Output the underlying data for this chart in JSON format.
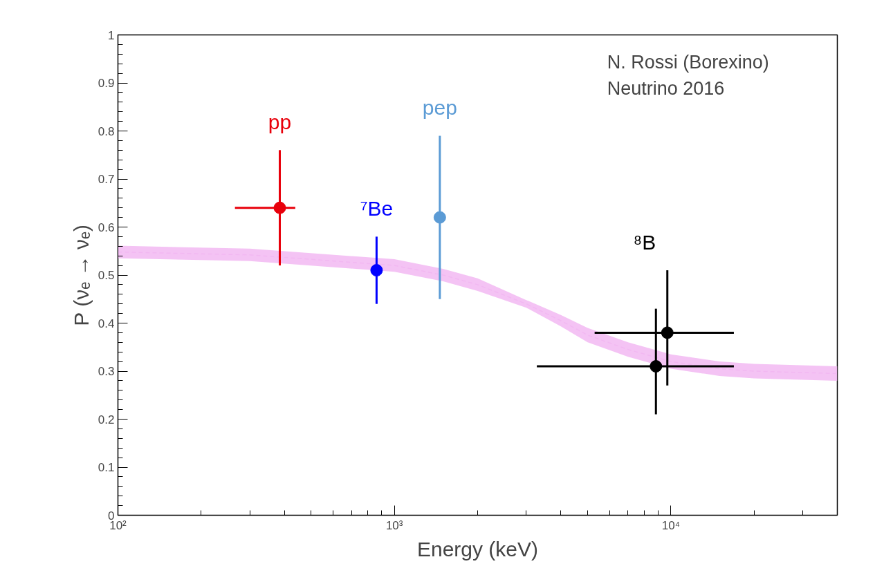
{
  "chart_data": {
    "type": "scatter",
    "xlabel": "Energy (keV)",
    "ylabel": "P (νₑ → νₑ)",
    "log": "x",
    "grid": false,
    "marker": "circle",
    "xlim": [
      100,
      40000
    ],
    "xticks": [
      {
        "value": 100,
        "label": "10²"
      },
      {
        "value": 1000,
        "label": "10³"
      },
      {
        "value": 10000,
        "label": "10⁴"
      }
    ],
    "ylim": [
      0,
      1
    ],
    "yticks": [
      0,
      0.1,
      0.2,
      0.3,
      0.4,
      0.5,
      0.6,
      0.7,
      0.8,
      0.9,
      1
    ],
    "annotations": [
      "N. Rossi (Borexino)",
      "Neutrino 2016"
    ],
    "series": [
      {
        "type": "line",
        "color": "#f2b8f2",
        "line_style": "dashed",
        "marker": "none",
        "x": [
          100,
          300,
          1000,
          1500,
          2000,
          3000,
          4000,
          5000,
          7000,
          10000,
          15000,
          20000,
          40000
        ],
        "values": [
          0.548,
          0.542,
          0.52,
          0.5,
          0.48,
          0.44,
          0.405,
          0.375,
          0.345,
          0.32,
          0.305,
          0.3,
          0.295
        ],
        "lower": [
          0.535,
          0.529,
          0.507,
          0.487,
          0.467,
          0.432,
          0.393,
          0.36,
          0.33,
          0.305,
          0.29,
          0.285,
          0.28
        ],
        "upper": [
          0.561,
          0.555,
          0.533,
          0.513,
          0.493,
          0.448,
          0.417,
          0.39,
          0.36,
          0.335,
          0.32,
          0.315,
          0.31
        ]
      },
      {
        "name": "pp",
        "color": "#e8000b",
        "x": [
          385
        ],
        "values": [
          0.64
        ],
        "errors": [
          [
            0.52,
            0.76
          ]
        ],
        "xerrors": [
          [
            265,
            438
          ]
        ]
      },
      {
        "name": "⁷Be",
        "color": "#0000ff",
        "x": [
          862
        ],
        "values": [
          0.51
        ],
        "errors": [
          [
            0.44,
            0.58
          ]
        ]
      },
      {
        "name": "pep",
        "color": "#5b9bd5",
        "x": [
          1460
        ],
        "values": [
          0.62
        ],
        "errors": [
          [
            0.45,
            0.79
          ]
        ]
      },
      {
        "name": "⁸B",
        "color": "#000000",
        "x": [
          8830,
          9710
        ],
        "values": [
          0.31,
          0.38
        ],
        "errors": [
          [
            0.21,
            0.43
          ],
          [
            0.27,
            0.51
          ]
        ],
        "xerrors": [
          [
            3275,
            16900
          ],
          [
            5300,
            16900
          ]
        ]
      }
    ]
  }
}
